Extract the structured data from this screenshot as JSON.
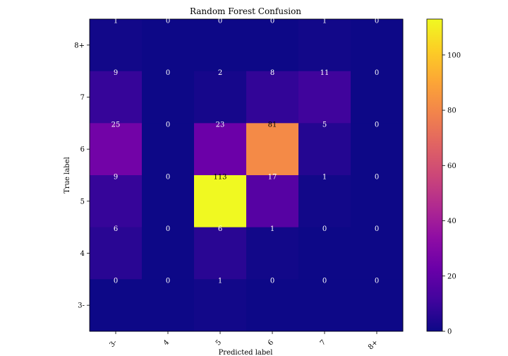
{
  "chart_data": {
    "type": "heatmap",
    "title": "Random Forest Confusion",
    "xlabel": "Predicted label",
    "ylabel": "True label",
    "x_categories": [
      "3-",
      "4",
      "5",
      "6",
      "7",
      "8+"
    ],
    "y_categories": [
      "8+",
      "7",
      "6",
      "5",
      "4",
      "3-"
    ],
    "matrix": [
      [
        1,
        0,
        0,
        0,
        1,
        0
      ],
      [
        9,
        0,
        2,
        8,
        11,
        0
      ],
      [
        25,
        0,
        23,
        81,
        5,
        0
      ],
      [
        9,
        0,
        113,
        17,
        1,
        0
      ],
      [
        6,
        0,
        6,
        1,
        0,
        0
      ],
      [
        0,
        0,
        1,
        0,
        0,
        0
      ]
    ],
    "colormap": "plasma",
    "color_range": [
      0,
      113
    ],
    "colorbar_ticks": [
      0,
      20,
      40,
      60,
      80,
      100
    ]
  }
}
